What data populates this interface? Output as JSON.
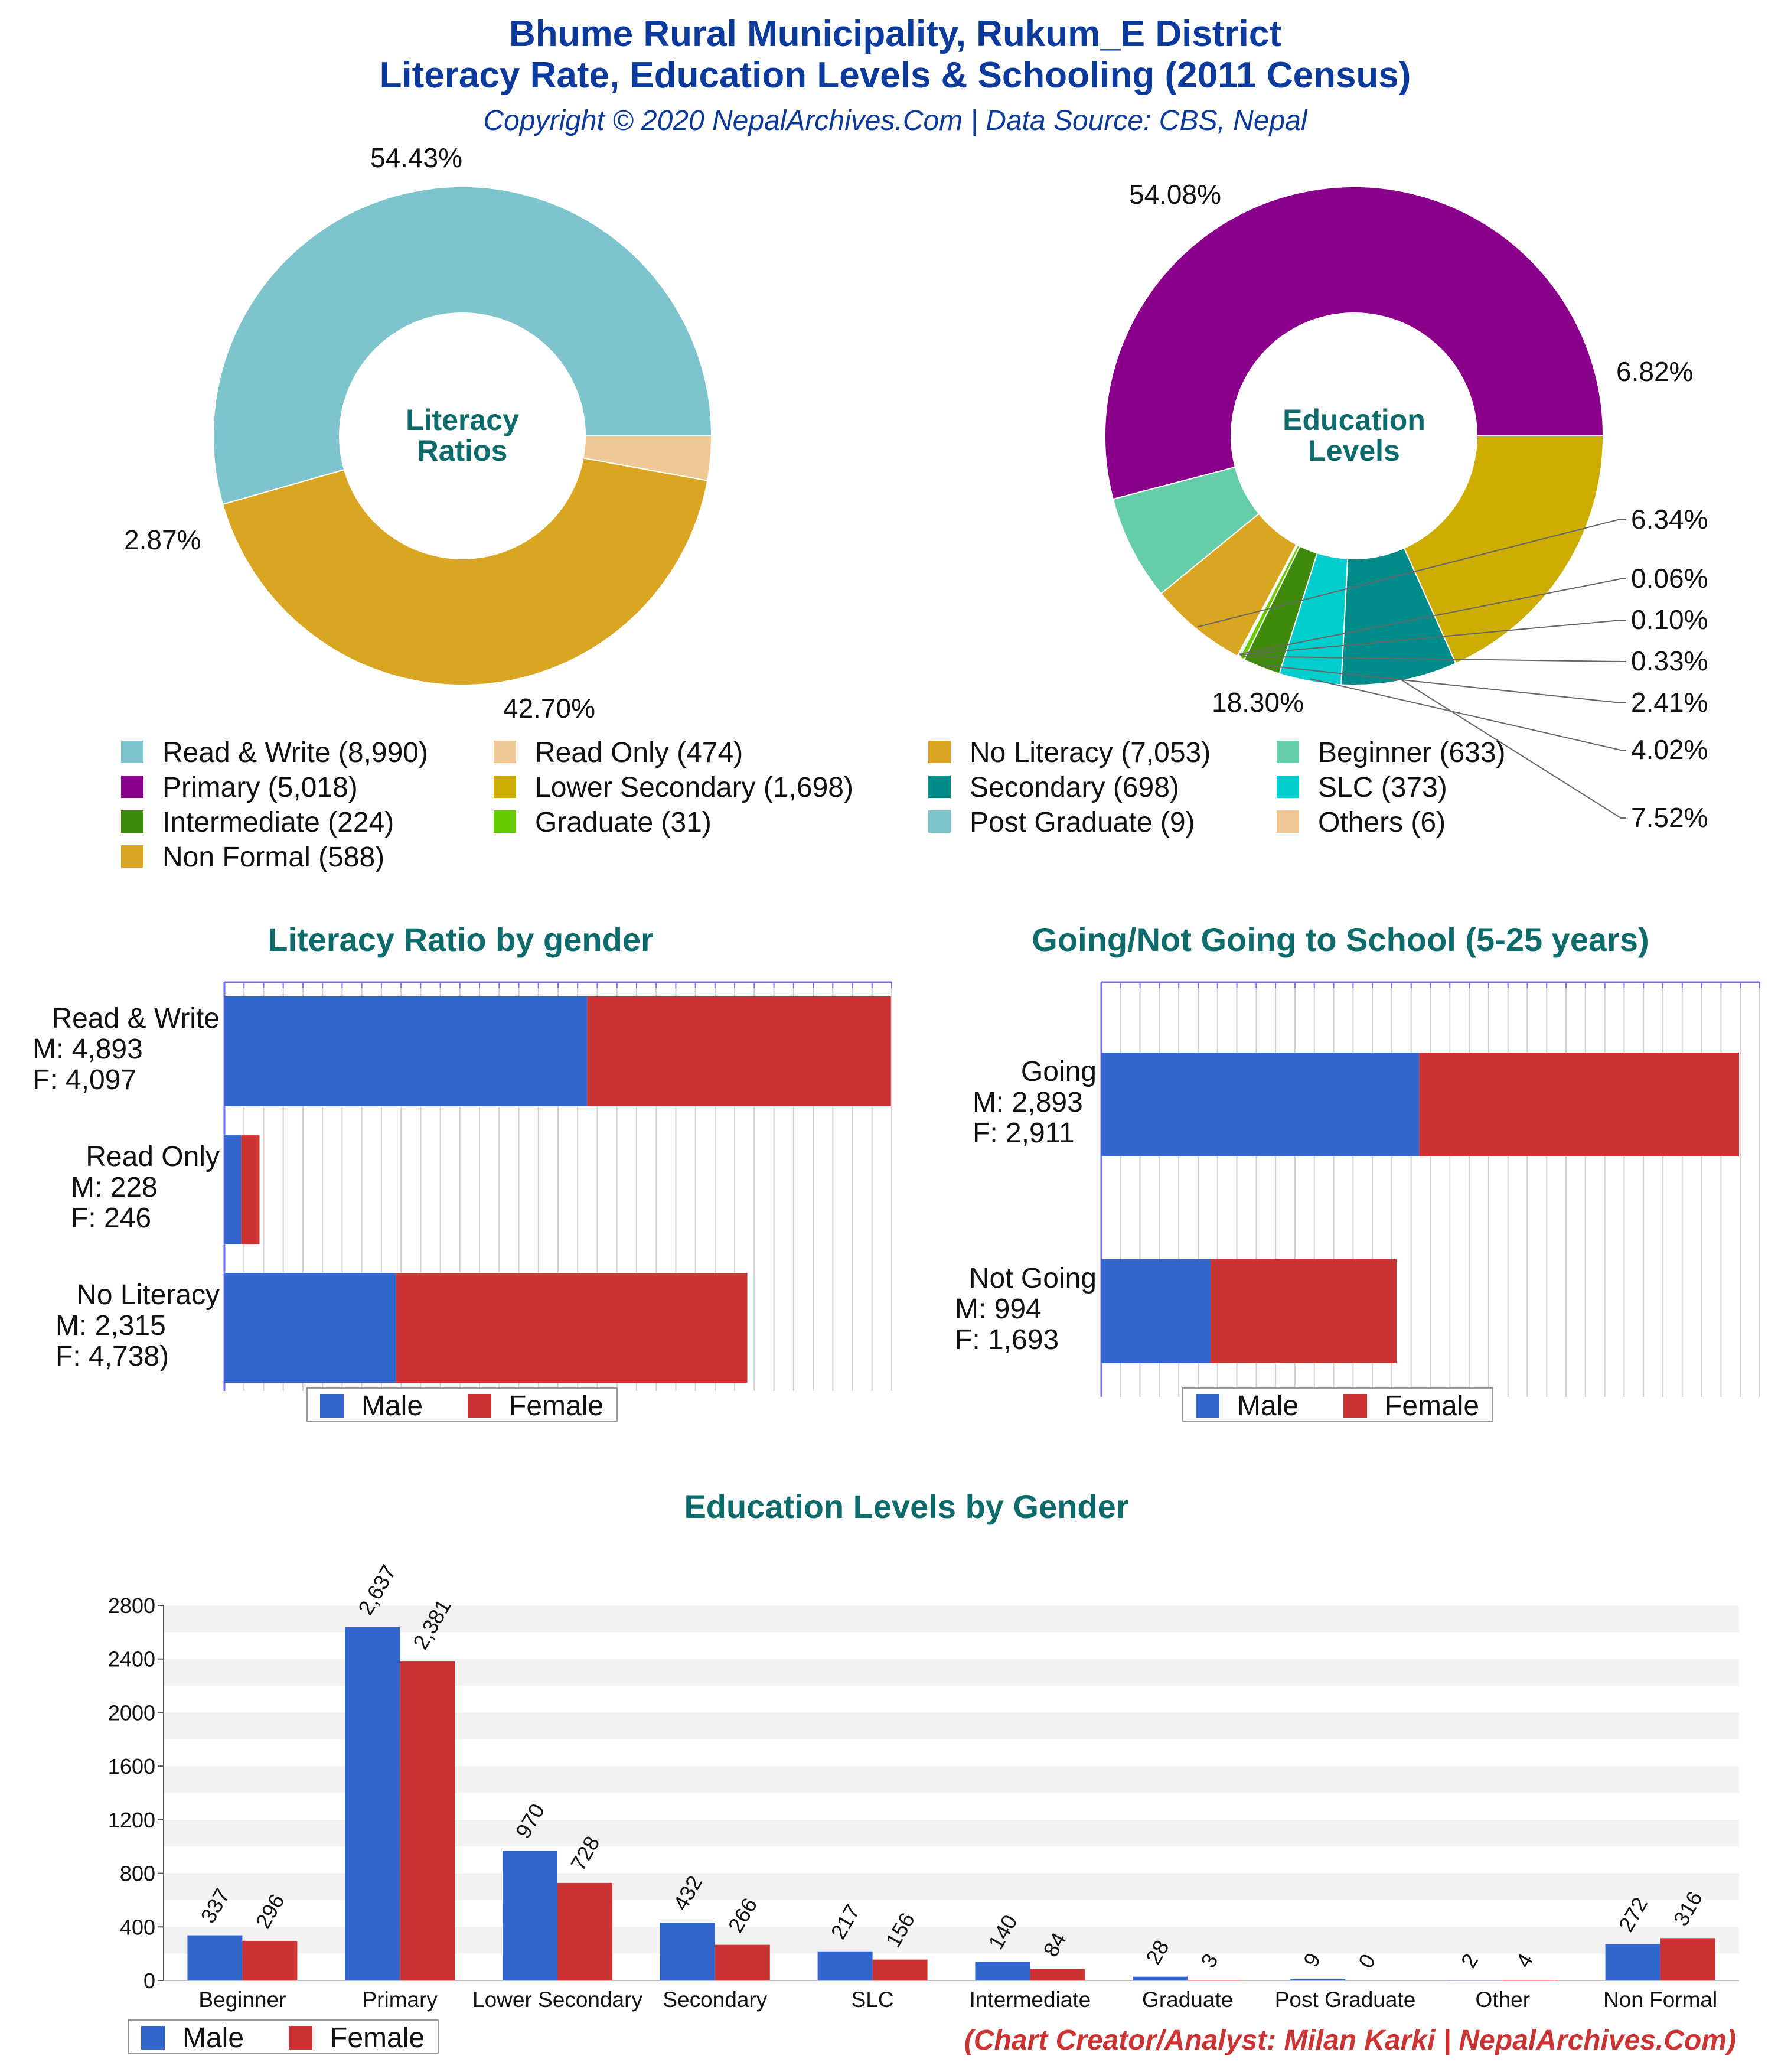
{
  "header": {
    "title_line1": "Bhume Rural Municipality, Rukum_E District",
    "title_line2": "Literacy Rate, Education Levels & Schooling (2011 Census)",
    "subtitle": "Copyright © 2020 NepalArchives.Com | Data Source: CBS, Nepal"
  },
  "colors": {
    "title": "#0b3a9c",
    "section": "#0d6b6b",
    "male": "#3366cc",
    "female": "#cc3333",
    "credit": "#cc3333",
    "grid": "#d0d0d0",
    "axis": "#7070ee"
  },
  "credit": "(Chart Creator/Analyst: Milan Karki | NepalArchives.Com)",
  "legend_common": {
    "male": "Male",
    "female": "Female"
  },
  "chart_data": [
    {
      "id": "literacy-donut",
      "type": "pie",
      "title": "Literacy Ratios",
      "slices": [
        {
          "name": "Read & Write",
          "value": 8990,
          "label": "54.43%",
          "color": "#7dc4cc"
        },
        {
          "name": "No Literacy",
          "value": 7053,
          "label": "42.70%",
          "color": "#daa520"
        },
        {
          "name": "Read Only",
          "value": 474,
          "label": "2.87%",
          "color": "#f0c896"
        }
      ]
    },
    {
      "id": "education-donut",
      "type": "pie",
      "title": "Education Levels",
      "slices": [
        {
          "name": "Primary",
          "value": 5018,
          "label": "54.08%",
          "color": "#8b008b"
        },
        {
          "name": "Beginner",
          "value": 633,
          "label": "6.82%",
          "color": "#66cdaa"
        },
        {
          "name": "Non Formal",
          "value": 588,
          "label": "6.34%",
          "color": "#daa520"
        },
        {
          "name": "Others",
          "value": 6,
          "label": "0.06%",
          "color": "#f0c896"
        },
        {
          "name": "Post Graduate",
          "value": 9,
          "label": "0.10%",
          "color": "#7dc4cc"
        },
        {
          "name": "Graduate",
          "value": 31,
          "label": "0.33%",
          "color": "#66cc00"
        },
        {
          "name": "Intermediate",
          "value": 224,
          "label": "2.41%",
          "color": "#3f8a0a"
        },
        {
          "name": "SLC",
          "value": 373,
          "label": "4.02%",
          "color": "#00cece"
        },
        {
          "name": "Secondary",
          "value": 698,
          "label": "7.52%",
          "color": "#008b8b"
        },
        {
          "name": "Lower Secondary",
          "value": 1698,
          "label": "18.30%",
          "color": "#ccad00"
        }
      ]
    },
    {
      "id": "pie-legend",
      "type": "table",
      "items": [
        {
          "label": "Read & Write (8,990)",
          "color": "#7dc4cc"
        },
        {
          "label": "Read Only (474)",
          "color": "#f0c896"
        },
        {
          "label": "No Literacy (7,053)",
          "color": "#daa520"
        },
        {
          "label": "Beginner (633)",
          "color": "#66cdaa"
        },
        {
          "label": "Primary (5,018)",
          "color": "#8b008b"
        },
        {
          "label": "Lower Secondary (1,698)",
          "color": "#ccad00"
        },
        {
          "label": "Secondary (698)",
          "color": "#008b8b"
        },
        {
          "label": "SLC (373)",
          "color": "#00cece"
        },
        {
          "label": "Intermediate (224)",
          "color": "#3f8a0a"
        },
        {
          "label": "Graduate (31)",
          "color": "#66cc00"
        },
        {
          "label": "Post Graduate (9)",
          "color": "#7dc4cc"
        },
        {
          "label": "Others (6)",
          "color": "#f0c896"
        },
        {
          "label": "Non Formal (588)",
          "color": "#daa520"
        }
      ]
    },
    {
      "id": "literacy-gender",
      "type": "bar",
      "title": "Literacy Ratio by gender",
      "orientation": "horizontal-stacked",
      "categories": [
        {
          "name": "Read & Write",
          "male_text": "M: 4,893",
          "female_text": "F: 4,097"
        },
        {
          "name": "Read Only",
          "male_text": "M: 228",
          "female_text": "F: 246"
        },
        {
          "name": "No Literacy",
          "male_text": "M: 2,315",
          "female_text": "F: 4,738)"
        }
      ],
      "series": [
        {
          "name": "Male",
          "values": [
            4893,
            228,
            2315
          ]
        },
        {
          "name": "Female",
          "values": [
            4097,
            246,
            4738
          ]
        }
      ],
      "xlim": [
        0,
        9000
      ]
    },
    {
      "id": "school-gender",
      "type": "bar",
      "title": "Going/Not Going to School (5-25 years)",
      "orientation": "horizontal-stacked",
      "categories": [
        {
          "name": "Going",
          "male_text": "M: 2,893",
          "female_text": "F: 2,911"
        },
        {
          "name": "Not Going",
          "male_text": "M: 994",
          "female_text": "F: 1,693"
        }
      ],
      "series": [
        {
          "name": "Male",
          "values": [
            2893,
            994
          ]
        },
        {
          "name": "Female",
          "values": [
            2911,
            1693
          ]
        }
      ],
      "xlim": [
        0,
        5804
      ]
    },
    {
      "id": "education-gender",
      "type": "bar",
      "title": "Education Levels by Gender",
      "categories": [
        "Beginner",
        "Primary",
        "Lower Secondary",
        "Secondary",
        "SLC",
        "Intermediate",
        "Graduate",
        "Post Graduate",
        "Other",
        "Non Formal"
      ],
      "series": [
        {
          "name": "Male",
          "values": [
            337,
            2637,
            970,
            432,
            217,
            140,
            28,
            9,
            2,
            272
          ],
          "labels": [
            "337",
            "2,637",
            "970",
            "432",
            "217",
            "140",
            "28",
            "9",
            "2",
            "272"
          ]
        },
        {
          "name": "Female",
          "values": [
            296,
            2381,
            728,
            266,
            156,
            84,
            3,
            0,
            4,
            316
          ],
          "labels": [
            "296",
            "2,381",
            "728",
            "266",
            "156",
            "84",
            "3",
            "0",
            "4",
            "316"
          ]
        }
      ],
      "ylim": [
        0,
        2800
      ],
      "yticks": [
        "0",
        "400",
        "800",
        "1200",
        "1600",
        "2000",
        "2400",
        "2800"
      ]
    }
  ]
}
